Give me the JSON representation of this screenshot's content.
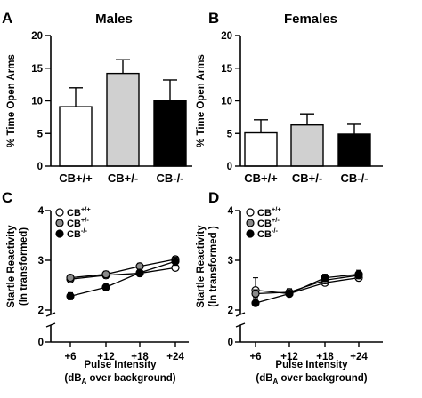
{
  "chart_data": [
    {
      "panel": "A",
      "type": "bar",
      "title": "Males",
      "ylabel": "% Time Open Arms",
      "xlabel": "",
      "ylim": [
        0,
        20
      ],
      "yticks": [
        "0",
        "5",
        "10",
        "15",
        "20"
      ],
      "categories": [
        "CB+/+",
        "CB+/-",
        "CB-/-"
      ],
      "values": [
        9.1,
        14.2,
        10.1
      ],
      "errors": [
        2.9,
        2.1,
        3.1
      ],
      "bar_colors": [
        "#ffffff",
        "#d0d0d0",
        "#000000"
      ]
    },
    {
      "panel": "B",
      "type": "bar",
      "title": "Females",
      "ylabel": "% Time Open Arms",
      "xlabel": "",
      "ylim": [
        0,
        20
      ],
      "yticks": [
        "0",
        "5",
        "10",
        "15",
        "20"
      ],
      "categories": [
        "CB+/+",
        "CB+/-",
        "CB-/-"
      ],
      "values": [
        5.1,
        6.3,
        4.9
      ],
      "errors": [
        2.0,
        1.7,
        1.5
      ],
      "bar_colors": [
        "#ffffff",
        "#d0d0d0",
        "#000000"
      ]
    },
    {
      "panel": "C",
      "type": "line",
      "title": "",
      "ylabel_lines": [
        "Startle Reactivity",
        "(ln transformed)"
      ],
      "xlabel_lines": [
        "Pulse Intensity",
        "(dB",
        "A",
        " over background)"
      ],
      "ylim": [
        0,
        4
      ],
      "yticks": [
        "0",
        "2",
        "3",
        "4"
      ],
      "categories": [
        "+6",
        "+12",
        "+18",
        "+24"
      ],
      "series": [
        {
          "name_base": "CB",
          "name_sup": "+/+",
          "marker": "open",
          "values": [
            2.62,
            2.7,
            2.74,
            2.85
          ],
          "errors": [
            0.06,
            0.06,
            0.05,
            0.05
          ]
        },
        {
          "name_base": "CB",
          "name_sup": "+/-",
          "marker": "gray",
          "values": [
            2.65,
            2.72,
            2.88,
            3.02
          ],
          "errors": [
            0.06,
            0.06,
            0.06,
            0.06
          ]
        },
        {
          "name_base": "CB",
          "name_sup": "-/-",
          "marker": "filled",
          "values": [
            2.28,
            2.46,
            2.75,
            2.98
          ],
          "errors": [
            0.07,
            0.06,
            0.07,
            0.08
          ]
        }
      ]
    },
    {
      "panel": "D",
      "type": "line",
      "title": "",
      "ylabel_lines": [
        "Startle Reactivity",
        "(ln transformed )"
      ],
      "xlabel_lines": [
        "Pulse Intensity",
        "(dB",
        "A",
        " over background)"
      ],
      "ylim": [
        0,
        4
      ],
      "yticks": [
        "0",
        "2",
        "3",
        "4"
      ],
      "categories": [
        "+6",
        "+12",
        "+18",
        "+24"
      ],
      "series": [
        {
          "name_base": "CB",
          "name_sup": "+/+",
          "marker": "open",
          "values": [
            2.4,
            2.33,
            2.55,
            2.65
          ],
          "errors": [
            0.25,
            0.05,
            0.05,
            0.06
          ]
        },
        {
          "name_base": "CB",
          "name_sup": "+/-",
          "marker": "gray",
          "values": [
            2.33,
            2.36,
            2.6,
            2.7
          ],
          "errors": [
            0.08,
            0.07,
            0.07,
            0.07
          ]
        },
        {
          "name_base": "CB",
          "name_sup": "-/-",
          "marker": "filled",
          "values": [
            2.14,
            2.33,
            2.65,
            2.72
          ],
          "errors": [
            0.06,
            0.06,
            0.07,
            0.08
          ]
        }
      ]
    }
  ]
}
